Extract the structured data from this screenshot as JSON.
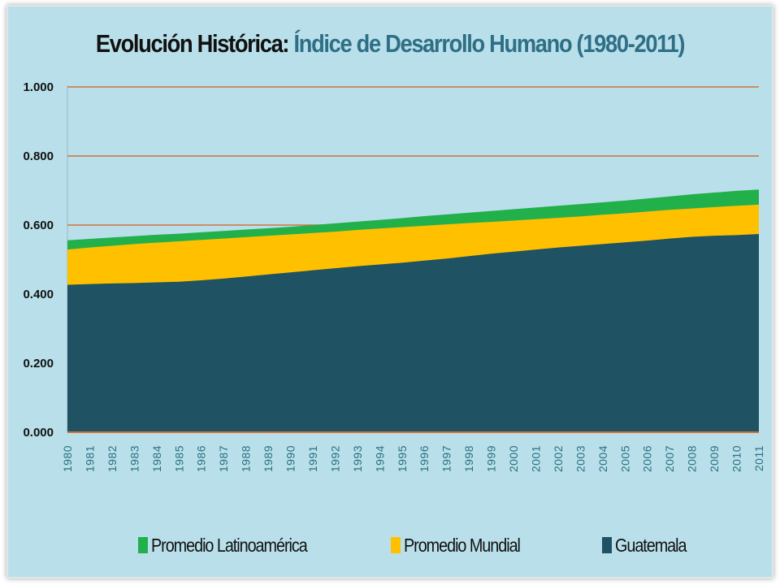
{
  "title": {
    "main": "Evolución Histórica:",
    "sub": "Índice de Desarrollo Humano (1980-2011)"
  },
  "colors": {
    "background": "#b9e0ea",
    "gridline": "#d2703a",
    "latinoamerica": "#22b04b",
    "mundial": "#ffc000",
    "guatemala": "#1f5263"
  },
  "legend": [
    {
      "label": "Promedio Latinoamérica",
      "color": "#22b04b"
    },
    {
      "label": "Promedio Mundial",
      "color": "#ffc000"
    },
    {
      "label": "Guatemala",
      "color": "#1f5263"
    }
  ],
  "chart_data": {
    "type": "area",
    "title": "Índice de Desarrollo Humano (1980-2011)",
    "xlabel": "",
    "ylabel": "",
    "ylim": [
      0,
      1
    ],
    "y_ticks": [
      "0.000",
      "0.200",
      "0.400",
      "0.600",
      "0.800",
      "1.000"
    ],
    "grid": true,
    "legend_position": "bottom",
    "x": [
      "1980",
      "1981",
      "1982",
      "1983",
      "1984",
      "1985",
      "1986",
      "1987",
      "1988",
      "1989",
      "1990",
      "1991",
      "1992",
      "1993",
      "1994",
      "1995",
      "1996",
      "1997",
      "1998",
      "1999",
      "2000",
      "2001",
      "2002",
      "2003",
      "2004",
      "2005",
      "2006",
      "2007",
      "2008",
      "2009",
      "2010",
      "2011"
    ],
    "series": [
      {
        "name": "Promedio Latinoamérica",
        "color": "#22b04b",
        "values": [
          0.556,
          0.56,
          0.564,
          0.568,
          0.572,
          0.575,
          0.579,
          0.583,
          0.587,
          0.591,
          0.595,
          0.6,
          0.605,
          0.61,
          0.615,
          0.62,
          0.626,
          0.631,
          0.636,
          0.641,
          0.646,
          0.651,
          0.656,
          0.661,
          0.666,
          0.671,
          0.677,
          0.683,
          0.689,
          0.694,
          0.699,
          0.703
        ]
      },
      {
        "name": "Promedio Mundial",
        "color": "#ffc000",
        "values": [
          0.529,
          0.535,
          0.54,
          0.545,
          0.549,
          0.553,
          0.557,
          0.561,
          0.565,
          0.569,
          0.573,
          0.577,
          0.581,
          0.586,
          0.59,
          0.594,
          0.598,
          0.602,
          0.606,
          0.609,
          0.613,
          0.617,
          0.621,
          0.625,
          0.63,
          0.634,
          0.639,
          0.644,
          0.648,
          0.652,
          0.656,
          0.659
        ]
      },
      {
        "name": "Guatemala",
        "color": "#1f5263",
        "values": [
          0.427,
          0.429,
          0.431,
          0.432,
          0.434,
          0.436,
          0.44,
          0.445,
          0.451,
          0.457,
          0.463,
          0.469,
          0.475,
          0.481,
          0.486,
          0.491,
          0.497,
          0.503,
          0.51,
          0.517,
          0.523,
          0.529,
          0.535,
          0.54,
          0.545,
          0.55,
          0.555,
          0.561,
          0.566,
          0.569,
          0.571,
          0.574
        ]
      }
    ]
  }
}
